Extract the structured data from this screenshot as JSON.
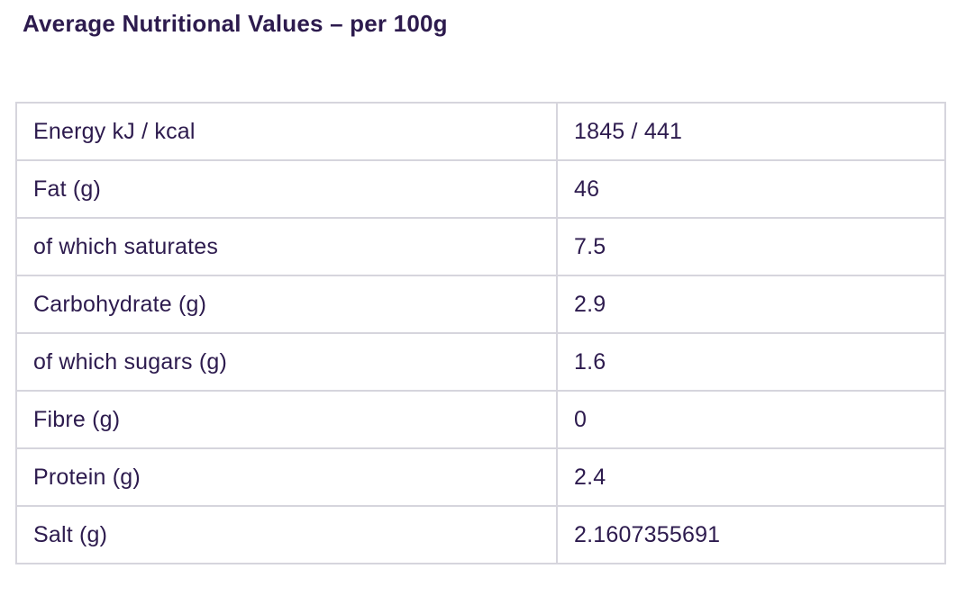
{
  "colors": {
    "text": "#2d1b4e",
    "border": "#d6d5dd",
    "background": "#ffffff"
  },
  "page": {
    "title": "Average Nutritional Values – per 100g"
  },
  "nutrition_table": {
    "rows": [
      {
        "label": "Energy kJ / kcal",
        "value": "1845 / 441"
      },
      {
        "label": "Fat (g)",
        "value": "46"
      },
      {
        "label": "of which saturates",
        "value": "7.5"
      },
      {
        "label": "Carbohydrate (g)",
        "value": "2.9"
      },
      {
        "label": "of which sugars (g)",
        "value": "1.6"
      },
      {
        "label": "Fibre (g)",
        "value": "0"
      },
      {
        "label": "Protein (g)",
        "value": "2.4"
      },
      {
        "label": "Salt (g)",
        "value": "2.1607355691"
      }
    ]
  }
}
